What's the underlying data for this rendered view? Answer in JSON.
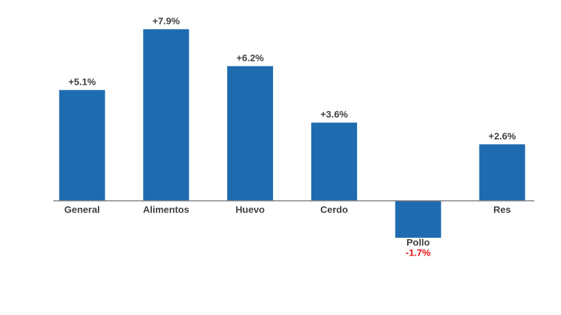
{
  "chart_data": {
    "type": "bar",
    "categories": [
      "General",
      "Alimentos",
      "Huevo",
      "Cerdo",
      "Pollo",
      "Res"
    ],
    "values": [
      5.1,
      7.9,
      6.2,
      3.6,
      -1.7,
      2.6
    ],
    "value_labels": [
      "+5.1%",
      "+7.9%",
      "+6.2%",
      "+3.6%",
      "-1.7%",
      "+2.6%"
    ],
    "color": "#1f6bb0",
    "label_color": "#404040",
    "negative_label_color": "#e3141b",
    "ylim": [
      -3.5,
      8.3
    ]
  }
}
